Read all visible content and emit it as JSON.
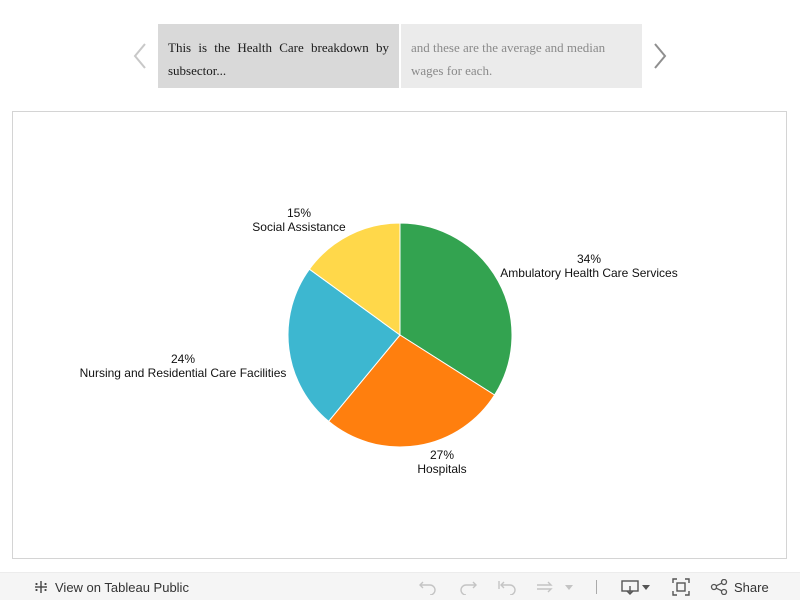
{
  "story": {
    "points": [
      {
        "caption": "This is the Health Care breakdown by subsector..."
      },
      {
        "caption": "and these are the average and median wages for each."
      }
    ]
  },
  "chart_data": {
    "type": "pie",
    "slices": [
      {
        "label": "Ambulatory Health Care Services",
        "percent": "34%",
        "value": 34,
        "color": "#33a350"
      },
      {
        "label": "Hospitals",
        "percent": "27%",
        "value": 27,
        "color": "#ff7f0e"
      },
      {
        "label": "Nursing and Residential Care Facilities",
        "percent": "24%",
        "value": 24,
        "color": "#3db7d0"
      },
      {
        "label": "Social Assistance",
        "percent": "15%",
        "value": 15,
        "color": "#ffd84a"
      }
    ]
  },
  "toolbar": {
    "view_label": "View on Tableau Public",
    "share_label": "Share",
    "icons": [
      "tableau-logo-icon",
      "undo-icon",
      "redo-icon",
      "revert-icon",
      "pause-refresh-icon",
      "dropdown-icon",
      "download-icon",
      "fullscreen-icon",
      "share-icon"
    ]
  }
}
